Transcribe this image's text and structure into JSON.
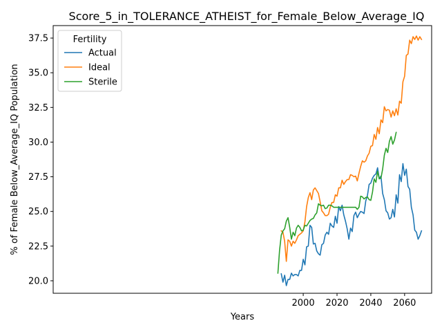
{
  "chart_data": {
    "type": "line",
    "title": "Score_5_in_TOLERANCE_ATHEIST_for_Female_Below_Average_IQ",
    "xlabel": "Years",
    "ylabel": "% of Female Below_Average_IQ Population",
    "xlim": [
      2073,
      2076
    ],
    "x_range": [
      1852,
      2076
    ],
    "y_range": [
      19.1,
      38.4
    ],
    "x_ticks": [
      2000,
      2020,
      2040,
      2060
    ],
    "y_ticks": [
      20.0,
      22.5,
      25.0,
      27.5,
      30.0,
      32.5,
      35.0,
      37.5
    ],
    "x_tick_labels": [
      "2000",
      "2020",
      "2040",
      "2060"
    ],
    "y_tick_labels": [
      "20.0",
      "22.5",
      "25.0",
      "27.5",
      "30.0",
      "32.5",
      "35.0",
      "37.5"
    ],
    "grid": false,
    "legend": {
      "title": "Fertility",
      "placement": "top-left"
    },
    "series": [
      {
        "name": "Actual",
        "color": "#1f77b4",
        "x": [
          1987,
          1988,
          1989,
          1990,
          1991,
          1992,
          1993,
          1994,
          1995,
          1996,
          1997,
          1998,
          1999,
          2000,
          2001,
          2002,
          2003,
          2004,
          2005,
          2006,
          2007,
          2008,
          2009,
          2010,
          2011,
          2012,
          2013,
          2014,
          2015,
          2016,
          2017,
          2018,
          2019,
          2020,
          2021,
          2022,
          2023,
          2024,
          2025,
          2026,
          2027,
          2028,
          2029,
          2030,
          2031,
          2032,
          2033,
          2034,
          2035,
          2036,
          2037,
          2038,
          2039,
          2040,
          2041,
          2042,
          2043,
          2044,
          2045,
          2046,
          2047,
          2048,
          2049,
          2050,
          2051,
          2052,
          2053,
          2054,
          2055,
          2056,
          2057,
          2058,
          2059,
          2060,
          2061,
          2062,
          2063,
          2064,
          2065,
          2066,
          2067,
          2068,
          2069,
          2070
        ],
        "values": [
          20.5,
          19.9,
          20.4,
          19.65,
          20.1,
          20.1,
          20.55,
          20.35,
          20.45,
          20.45,
          20.35,
          20.75,
          20.75,
          21.55,
          21.15,
          22.45,
          22.5,
          24.0,
          23.85,
          22.65,
          22.7,
          22.15,
          21.95,
          21.85,
          22.6,
          22.7,
          23.3,
          23.5,
          23.35,
          24.15,
          23.95,
          23.85,
          24.65,
          24.15,
          25.35,
          25.05,
          25.45,
          24.75,
          24.3,
          23.75,
          23.0,
          23.8,
          23.55,
          24.7,
          24.95,
          24.55,
          24.8,
          25.0,
          24.95,
          24.85,
          25.75,
          26.15,
          26.95,
          27.05,
          27.4,
          27.6,
          27.7,
          28.15,
          27.35,
          27.55,
          26.3,
          25.85,
          25.05,
          24.9,
          24.45,
          24.55,
          25.15,
          24.6,
          26.2,
          25.6,
          27.65,
          27.15,
          28.45,
          27.6,
          28.05,
          26.8,
          26.6,
          25.3,
          24.75,
          23.65,
          23.5,
          23.0,
          23.25,
          23.6
        ]
      },
      {
        "name": "Ideal",
        "color": "#ff7f0e",
        "x": [
          1987,
          1988,
          1989,
          1990,
          1991,
          1992,
          1993,
          1994,
          1995,
          1996,
          1997,
          1998,
          1999,
          2000,
          2001,
          2002,
          2003,
          2004,
          2005,
          2006,
          2007,
          2008,
          2009,
          2010,
          2011,
          2012,
          2013,
          2014,
          2015,
          2016,
          2017,
          2018,
          2019,
          2020,
          2021,
          2022,
          2023,
          2024,
          2025,
          2026,
          2027,
          2028,
          2029,
          2030,
          2031,
          2032,
          2033,
          2034,
          2035,
          2036,
          2037,
          2038,
          2039,
          2040,
          2041,
          2042,
          2043,
          2044,
          2045,
          2046,
          2047,
          2048,
          2049,
          2050,
          2051,
          2052,
          2053,
          2054,
          2055,
          2056,
          2057,
          2058,
          2059,
          2060,
          2061,
          2062,
          2063,
          2064,
          2065,
          2066,
          2067,
          2068,
          2069,
          2070
        ],
        "values": [
          23.6,
          23.5,
          22.85,
          21.4,
          22.95,
          22.85,
          22.5,
          22.85,
          22.7,
          22.95,
          23.25,
          23.35,
          23.45,
          23.6,
          24.25,
          25.35,
          26.0,
          26.35,
          25.85,
          26.55,
          26.7,
          26.5,
          26.3,
          25.7,
          25.05,
          24.9,
          24.7,
          24.7,
          24.8,
          25.3,
          25.65,
          25.65,
          26.2,
          26.1,
          26.7,
          26.7,
          27.25,
          26.95,
          27.15,
          27.3,
          27.3,
          27.65,
          27.6,
          27.5,
          27.55,
          27.2,
          27.75,
          28.25,
          28.65,
          28.55,
          28.65,
          29.0,
          29.2,
          29.7,
          29.75,
          30.55,
          30.2,
          31.05,
          30.6,
          31.6,
          31.4,
          32.55,
          32.25,
          32.35,
          32.3,
          31.8,
          32.25,
          31.9,
          32.4,
          31.95,
          32.95,
          32.8,
          34.35,
          34.75,
          36.25,
          36.35,
          37.35,
          37.1,
          37.6,
          37.4,
          37.65,
          37.35,
          37.6,
          37.4
        ]
      },
      {
        "name": "Sterile",
        "color": "#2ca02c",
        "x": [
          1985,
          1986,
          1987,
          1988,
          1989,
          1990,
          1991,
          1992,
          1993,
          1994,
          1995,
          1996,
          1997,
          1998,
          1999,
          2000,
          2001,
          2002,
          2003,
          2004,
          2005,
          2006,
          2007,
          2008,
          2009,
          2010,
          2011,
          2012,
          2013,
          2014,
          2015,
          2016,
          2017,
          2018,
          2019,
          2020,
          2021,
          2022,
          2023,
          2024,
          2025,
          2026,
          2027,
          2028,
          2029,
          2030,
          2031,
          2032,
          2033,
          2034,
          2035,
          2036,
          2037,
          2038,
          2039,
          2040,
          2041,
          2042,
          2043,
          2044,
          2045,
          2046,
          2047,
          2048,
          2049,
          2050,
          2051,
          2052,
          2053,
          2054,
          2055
        ],
        "values": [
          20.55,
          22.2,
          23.3,
          23.6,
          23.75,
          24.3,
          24.55,
          23.85,
          23.0,
          23.5,
          23.25,
          23.8,
          24.0,
          23.85,
          23.6,
          23.65,
          24.0,
          23.95,
          24.15,
          24.35,
          24.45,
          24.5,
          24.75,
          24.9,
          25.55,
          25.45,
          25.4,
          25.45,
          25.2,
          25.25,
          25.45,
          25.45,
          25.4,
          25.3,
          25.3,
          25.3,
          25.3,
          25.3,
          25.3,
          25.3,
          25.3,
          25.3,
          25.3,
          25.3,
          25.3,
          25.3,
          25.3,
          25.15,
          25.3,
          26.1,
          26.05,
          25.9,
          26.0,
          26.05,
          25.85,
          25.8,
          26.4,
          27.35,
          27.1,
          27.9,
          27.35,
          27.4,
          28.05,
          29.05,
          29.55,
          29.25,
          30.05,
          30.4,
          29.85,
          30.15,
          30.7
        ]
      }
    ]
  }
}
